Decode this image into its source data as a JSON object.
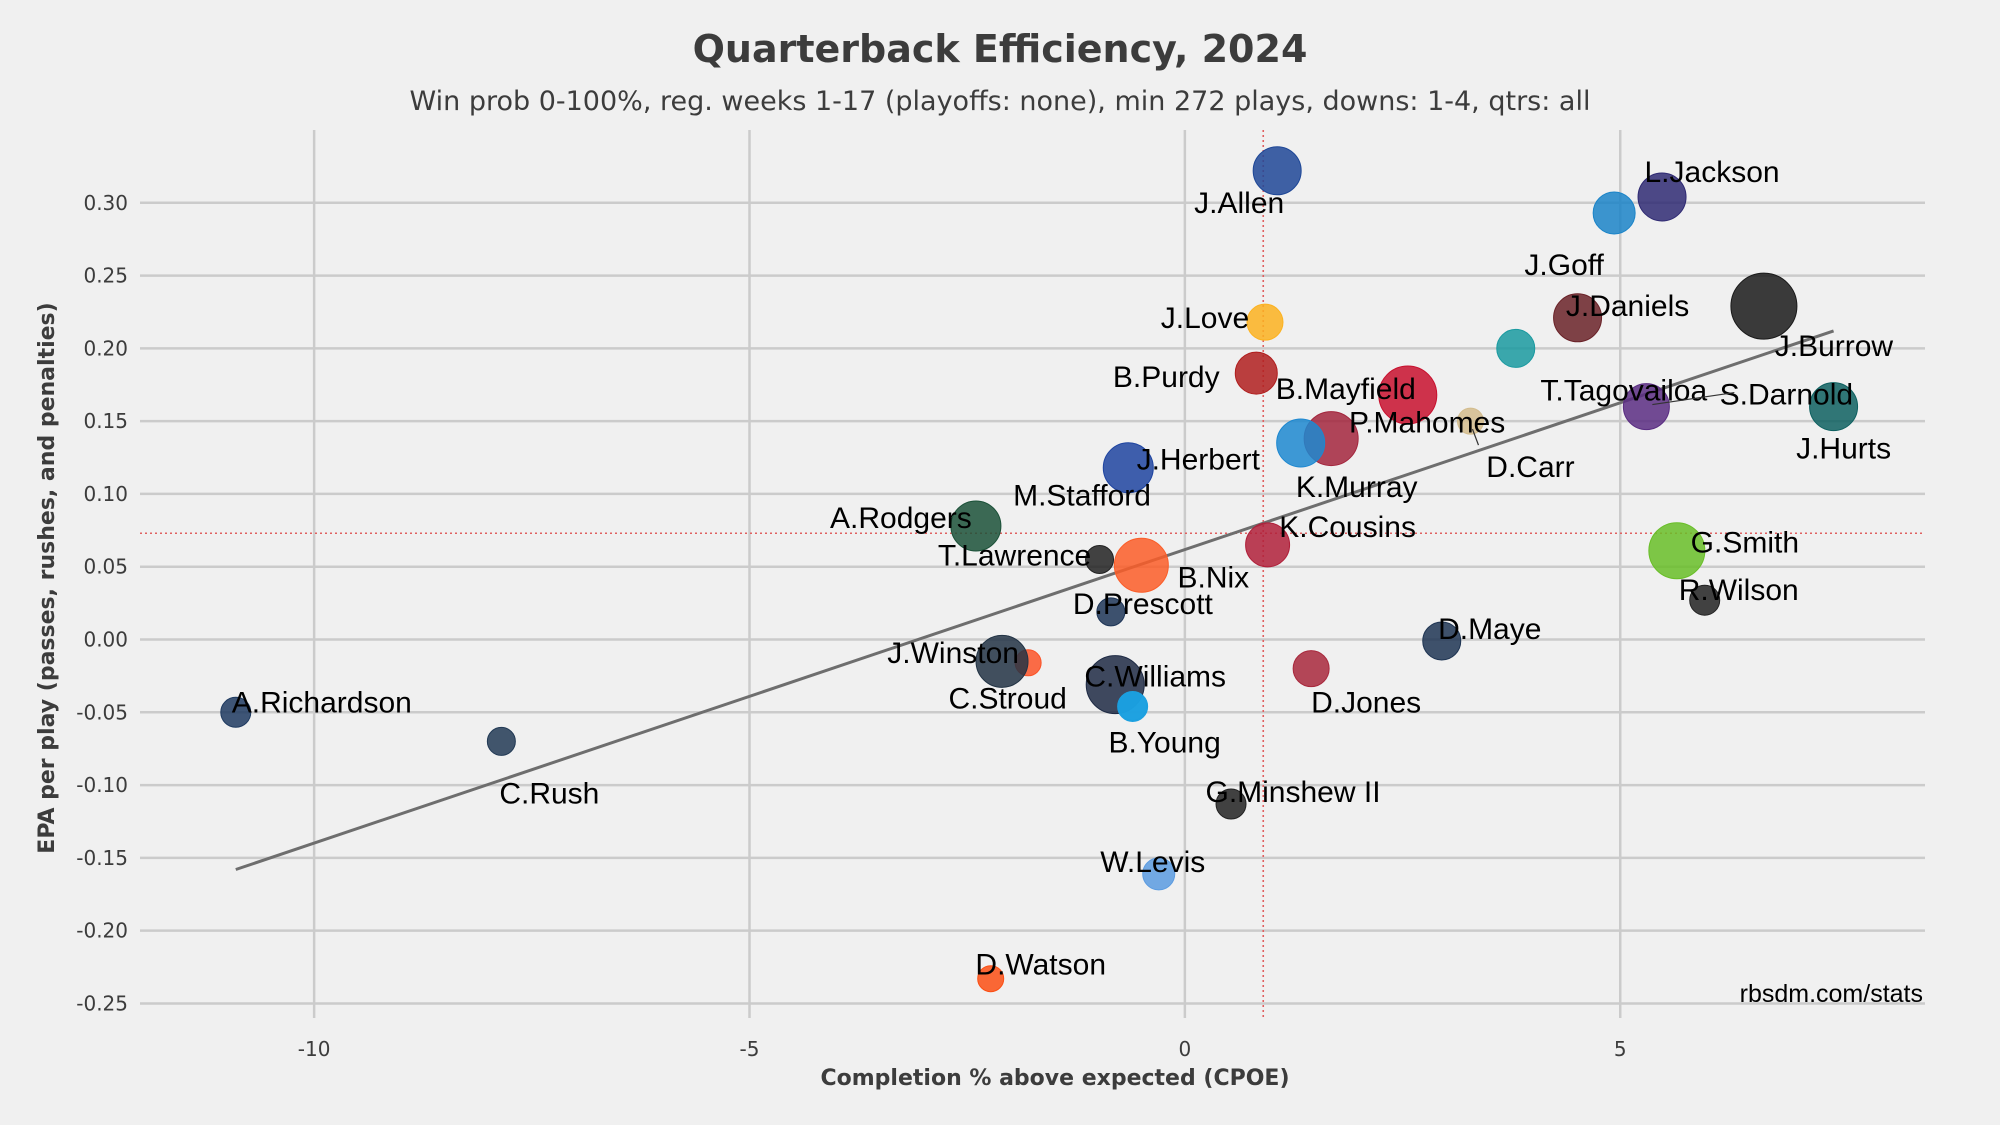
{
  "chart_data": {
    "type": "scatter",
    "title": "Quarterback Efficiency, 2024",
    "subtitle": "Win prob 0-100%, reg. weeks 1-17 (playoffs: none), min 272 plays, downs: 1-4, qtrs: all",
    "xlabel": "Completion % above expected (CPOE)",
    "ylabel": "EPA per play (passes, rushes, and penalties)",
    "xlim": [
      -12,
      8.5
    ],
    "ylim": [
      -0.26,
      0.35
    ],
    "x_ticks": [
      -10,
      -5,
      0,
      5
    ],
    "x_tick_labels": [
      "-10",
      "-5",
      "0",
      "5"
    ],
    "y_ticks": [
      -0.25,
      -0.2,
      -0.15,
      -0.1,
      -0.05,
      0.0,
      0.05,
      0.1,
      0.15,
      0.2,
      0.25,
      0.3
    ],
    "y_tick_labels": [
      "-0.25",
      "-0.20",
      "-0.15",
      "-0.10",
      "-0.05",
      "0.00",
      "0.05",
      "0.10",
      "0.15",
      "0.20",
      "0.25",
      "0.30"
    ],
    "grid": true,
    "reference_lines": {
      "mean_x": 0.9,
      "mean_y": 0.073,
      "color": "#e06060"
    },
    "trend_line": {
      "x": [
        -10.9,
        7.45
      ],
      "y": [
        -0.158,
        0.212
      ],
      "color": "#6e6e6e"
    },
    "credit": "rbsdm.com/stats",
    "points": [
      {
        "label": "J.Allen",
        "x": 1.06,
        "y": 0.322,
        "color": "#1e4797"
      },
      {
        "label": "L.Jackson",
        "x": 5.48,
        "y": 0.304,
        "color": "#2f2a73"
      },
      {
        "label": "J.Goff",
        "x": 4.93,
        "y": 0.293,
        "color": "#1b84c8"
      },
      {
        "label": "J.Daniels",
        "x": 4.51,
        "y": 0.221,
        "color": "#6a2228"
      },
      {
        "label": "J.Burrow",
        "x": 6.65,
        "y": 0.229,
        "color": "#1a1a1a"
      },
      {
        "label": "J.Love",
        "x": 0.92,
        "y": 0.218,
        "color": "#fcb220"
      },
      {
        "label": "T.Tagovailoa",
        "x": 3.8,
        "y": 0.2,
        "color": "#1a9aa0"
      },
      {
        "label": "B.Purdy",
        "x": 0.82,
        "y": 0.183,
        "color": "#b01e1e"
      },
      {
        "label": "B.Mayfield",
        "x": 2.56,
        "y": 0.168,
        "color": "#c8102e"
      },
      {
        "label": "S.Darnold",
        "x": 5.3,
        "y": 0.16,
        "color": "#5a2d82"
      },
      {
        "label": "J.Hurts",
        "x": 7.45,
        "y": 0.16,
        "color": "#0e6060"
      },
      {
        "label": "D.Carr",
        "x": 3.28,
        "y": 0.15,
        "color": "#d3bc8d"
      },
      {
        "label": "P.Mahomes",
        "x": 1.68,
        "y": 0.138,
        "color": "#a3263d"
      },
      {
        "label": "K.Murray",
        "x": 1.33,
        "y": 0.135,
        "color": "#1d88d0"
      },
      {
        "label": "J.Herbert",
        "x": -0.65,
        "y": 0.118,
        "color": "#1e44a0"
      },
      {
        "label": "A.Rodgers",
        "x": -2.4,
        "y": 0.078,
        "color": "#1b5138"
      },
      {
        "label": "K.Cousins",
        "x": 0.95,
        "y": 0.065,
        "color": "#b0203a"
      },
      {
        "label": "G.Smith",
        "x": 5.65,
        "y": 0.061,
        "color": "#69be28"
      },
      {
        "label": "T.Lawrence",
        "x": -0.98,
        "y": 0.055,
        "color": "#222222"
      },
      {
        "label": "B.Nix",
        "x": -0.5,
        "y": 0.051,
        "color": "#fb5d28"
      },
      {
        "label": "R.Wilson",
        "x": 5.97,
        "y": 0.027,
        "color": "#222222"
      },
      {
        "label": "D.Prescott",
        "x": -0.85,
        "y": 0.019,
        "color": "#1d3557"
      },
      {
        "label": "D.Maye",
        "x": 2.95,
        "y": -0.001,
        "color": "#1f3553"
      },
      {
        "label": "J.Winston",
        "x": -1.8,
        "y": -0.016,
        "color": "#fb5328"
      },
      {
        "label": "M.Stafford",
        "x": -2.1,
        "y": -0.015,
        "color": "#223344"
      },
      {
        "label": "D.Jones",
        "x": 1.45,
        "y": -0.02,
        "color": "#a8283c"
      },
      {
        "label": "C.Williams",
        "x": -0.8,
        "y": -0.031,
        "color": "#1e2a44"
      },
      {
        "label": "C.Stroud",
        "x": -0.6,
        "y": -0.046,
        "color": "#1ba0e0"
      },
      {
        "label": "A.Richardson",
        "x": -10.9,
        "y": -0.05,
        "color": "#1e3a60"
      },
      {
        "label": "C.Rush",
        "x": -7.85,
        "y": -0.07,
        "color": "#223a55"
      },
      {
        "label": "B.Young",
        "x": -0.6,
        "y": -0.046,
        "color": "#1ba0e0"
      },
      {
        "label": "G.Minshew II",
        "x": 0.53,
        "y": -0.113,
        "color": "#222222"
      },
      {
        "label": "W.Levis",
        "x": -0.3,
        "y": -0.161,
        "color": "#5b9be0"
      },
      {
        "label": "D.Watson",
        "x": -2.23,
        "y": -0.233,
        "color": "#fb4f14"
      }
    ]
  }
}
